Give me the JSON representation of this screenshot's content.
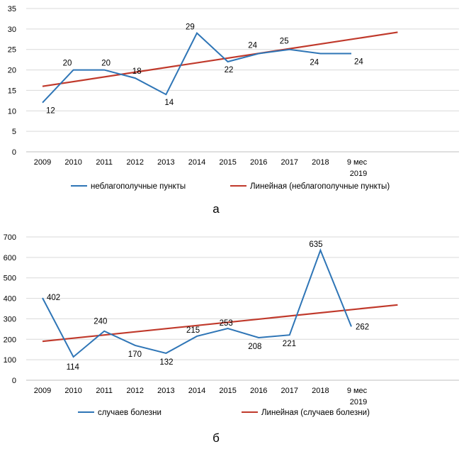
{
  "chart_data": [
    {
      "type": "line",
      "categories": [
        "2009",
        "2010",
        "2011",
        "2012",
        "2013",
        "2014",
        "2015",
        "2016",
        "2017",
        "2018",
        "9 мес 2019"
      ],
      "ylim": [
        0,
        35
      ],
      "yticks": [
        0,
        5,
        10,
        15,
        20,
        25,
        30,
        35
      ],
      "grid": "horizontal",
      "legend_position": "bottom",
      "series": [
        {
          "name": "неблагополучные пункты",
          "color": "#2e75b6",
          "values": [
            12,
            20,
            20,
            18,
            14,
            29,
            22,
            24,
            25,
            24,
            24
          ]
        }
      ],
      "trendline": {
        "name": "Линейная (неблагополучные пункты)",
        "color": "#c0392b",
        "start_value": 16,
        "end_value": 29.2,
        "extends_periods": 1.5
      },
      "caption": "а"
    },
    {
      "type": "line",
      "categories": [
        "2009",
        "2010",
        "2011",
        "2012",
        "2013",
        "2014",
        "2015",
        "2016",
        "2017",
        "2018",
        "9 мес 2019"
      ],
      "ylim": [
        0,
        700
      ],
      "yticks": [
        0,
        100,
        200,
        300,
        400,
        500,
        600,
        700
      ],
      "grid": "horizontal",
      "legend_position": "bottom",
      "series": [
        {
          "name": "случаев болезни",
          "color": "#2e75b6",
          "values": [
            402,
            114,
            240,
            170,
            132,
            215,
            253,
            208,
            221,
            635,
            262
          ]
        }
      ],
      "trendline": {
        "name": "Линейная (случаев болезни)",
        "color": "#c0392b",
        "start_value": 190,
        "end_value": 368,
        "extends_periods": 1.5
      },
      "caption": "б"
    }
  ]
}
